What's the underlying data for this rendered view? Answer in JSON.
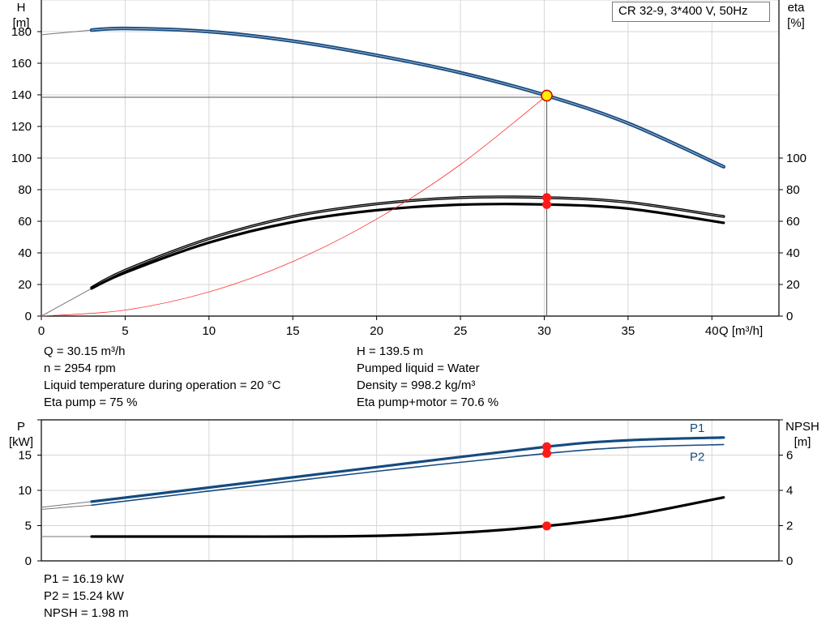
{
  "title": "CR 32-9, 3*400 V, 50Hz",
  "colors": {
    "blue": "#154a80",
    "black": "#000000",
    "red": "#ff3030",
    "marker_red": "#ff1a1a",
    "marker_yellow": "#ffee00",
    "grid": "#d6d6d6"
  },
  "chart_data": [
    {
      "type": "line",
      "id": "head-efficiency",
      "x_label": "Q [m³/h]",
      "y_left_label": [
        "H",
        "[m]"
      ],
      "y_right_label": [
        "eta",
        "[%]"
      ],
      "xlim": [
        0,
        44
      ],
      "ylim_left": [
        0,
        200
      ],
      "ylim_right": [
        0,
        200
      ],
      "x_ticks": [
        0,
        5,
        10,
        15,
        20,
        25,
        30,
        35,
        40
      ],
      "y_left_ticks": [
        0,
        20,
        40,
        60,
        80,
        100,
        120,
        140,
        160,
        180
      ],
      "y_right_ticks": [
        0,
        20,
        40,
        60,
        80,
        100
      ],
      "grid": true,
      "series": [
        {
          "role": "H",
          "axis": "left",
          "color": "#154a80",
          "width": 3.2,
          "x": [
            3,
            5,
            10,
            15,
            20,
            25,
            30.15,
            35,
            40.7
          ],
          "y": [
            181,
            182,
            180,
            174,
            165,
            154,
            139.5,
            122,
            94.5
          ],
          "ext_x": [
            0,
            3
          ],
          "ext_y": [
            178,
            181
          ]
        },
        {
          "role": "Eta pump",
          "axis": "right",
          "color": "#000000",
          "width": 2.2,
          "x": [
            3,
            5,
            10,
            15,
            20,
            25,
            30.15,
            35,
            40.7
          ],
          "y": [
            18,
            29,
            49,
            63,
            71,
            75,
            75,
            72,
            63
          ]
        },
        {
          "role": "Eta pump+motor",
          "axis": "right",
          "color": "#000000",
          "width": 3.2,
          "x": [
            3,
            5,
            10,
            15,
            20,
            25,
            30.15,
            35,
            40.7
          ],
          "y": [
            17.5,
            27.5,
            46.5,
            59.5,
            67,
            70.5,
            70.6,
            68,
            59
          ],
          "ext_x": [
            0,
            3
          ],
          "ext_y": [
            0,
            17.5
          ]
        },
        {
          "role": "system curve",
          "axis": "left",
          "color": "#ff3030",
          "width": 0.8,
          "x": [
            0,
            5,
            10,
            15,
            20,
            25,
            30.15
          ],
          "y": [
            0,
            3.8,
            15.3,
            34.5,
            61.4,
            95.9,
            139.5
          ]
        }
      ],
      "operating_point": {
        "x": 30.15,
        "H": 139.5,
        "eta_pump": 75,
        "eta_total": 70.6
      }
    },
    {
      "type": "line",
      "id": "power-npsh",
      "y_left_label": [
        "P",
        "[kW]"
      ],
      "y_right_label": [
        "NPSH",
        "[m]"
      ],
      "xlim": [
        0,
        44
      ],
      "ylim_left": [
        0,
        20
      ],
      "ylim_right": [
        0,
        8
      ],
      "y_left_ticks": [
        0,
        5,
        10,
        15
      ],
      "y_right_ticks": [
        0,
        2,
        4,
        6
      ],
      "grid": true,
      "series": [
        {
          "name": "P1",
          "axis": "left",
          "color": "#154a80",
          "width": 3.2,
          "x": [
            3,
            10,
            20,
            30.15,
            35,
            40.7
          ],
          "y": [
            8.4,
            10.4,
            13.3,
            16.19,
            17.1,
            17.5
          ],
          "ext_x": [
            0,
            3
          ],
          "ext_y": [
            7.6,
            8.4
          ]
        },
        {
          "name": "P2",
          "axis": "left",
          "color": "#154a80",
          "width": 1.6,
          "x": [
            3,
            10,
            20,
            30.15,
            35,
            40.7
          ],
          "y": [
            7.9,
            9.9,
            12.7,
            15.24,
            16.1,
            16.5
          ],
          "ext_x": [
            0,
            3
          ],
          "ext_y": [
            7.3,
            7.9
          ]
        },
        {
          "role": "NPSH",
          "axis": "right",
          "color": "#000000",
          "width": 3.2,
          "x": [
            3,
            10,
            15,
            20,
            25,
            30.15,
            35,
            40.7
          ],
          "y": [
            1.38,
            1.38,
            1.38,
            1.42,
            1.6,
            1.98,
            2.55,
            3.6
          ],
          "ext_x": [
            0,
            3
          ],
          "ext_y": [
            1.38,
            1.38
          ]
        }
      ],
      "operating_point": {
        "x": 30.15,
        "P1": 16.19,
        "P2": 15.24,
        "NPSH": 1.98
      }
    }
  ],
  "info_top_left": [
    "Q = 30.15 m³/h",
    "n = 2954 rpm",
    "Liquid temperature during operation = 20 °C",
    "Eta pump = 75 %"
  ],
  "info_top_right": [
    "H = 139.5 m",
    "Pumped liquid = Water",
    "Density = 998.2 kg/m³",
    "Eta pump+motor = 70.6 %"
  ],
  "info_bottom": [
    "P1 = 16.19 kW",
    "P2 = 15.24 kW",
    "NPSH = 1.98 m"
  ]
}
